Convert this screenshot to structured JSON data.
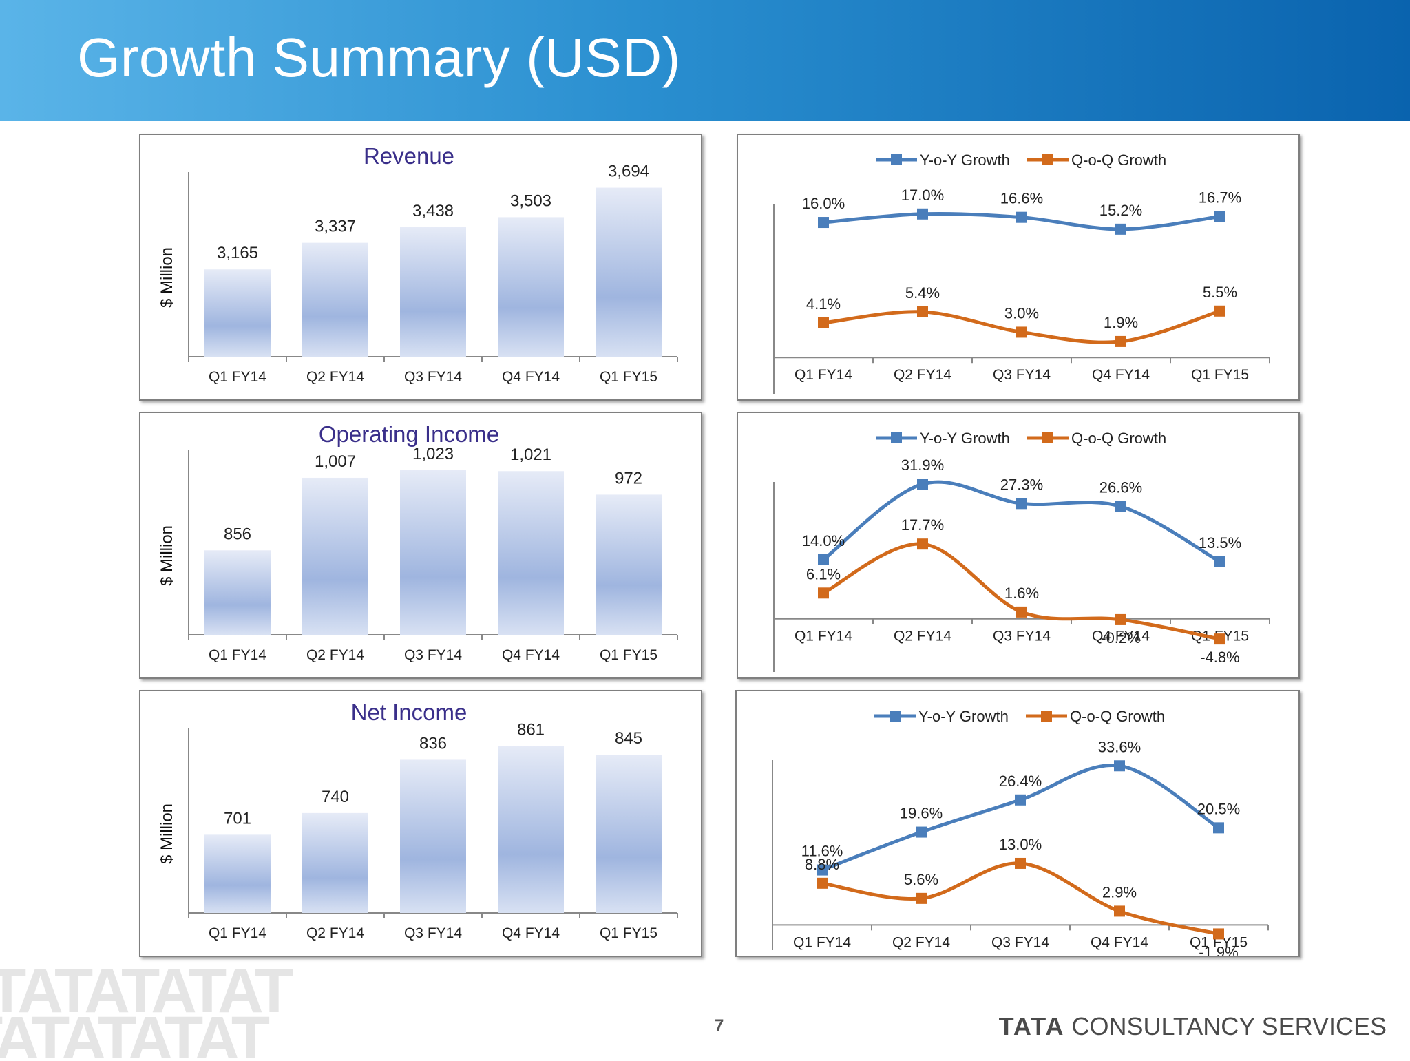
{
  "header": {
    "title": "Growth Summary (USD)"
  },
  "footer": {
    "page_number": "7",
    "brand_mark": "TATA",
    "brand_name": "CONSULTANCY SERVICES",
    "watermark_text": "TATATATAT"
  },
  "colors": {
    "bar_top": "#e6ebf7",
    "bar_bottom": "#9fb5df",
    "yoy": "#4a7ebb",
    "qoq": "#d26a1b",
    "title_text": "#3a2f8a"
  },
  "chart_data": [
    {
      "type": "bar",
      "title": "Revenue",
      "ylabel": "$ Million",
      "categories": [
        "Q1 FY14",
        "Q2 FY14",
        "Q3 FY14",
        "Q4 FY14",
        "Q1 FY15"
      ],
      "values": [
        3165,
        3337,
        3438,
        3503,
        3694
      ],
      "labels": [
        "3,165",
        "3,337",
        "3,438",
        "3,503",
        "3,694"
      ],
      "ylim": [
        2600,
        3750
      ]
    },
    {
      "type": "line",
      "categories": [
        "Q1 FY14",
        "Q2 FY14",
        "Q3 FY14",
        "Q4 FY14",
        "Q1 FY15"
      ],
      "legend_position": "top",
      "ylim": [
        -3,
        20
      ],
      "series": [
        {
          "name": "Y-o-Y Growth",
          "values": [
            16.0,
            17.0,
            16.6,
            15.2,
            16.7
          ],
          "labels": [
            "16.0%",
            "17.0%",
            "16.6%",
            "15.2%",
            "16.7%"
          ]
        },
        {
          "name": "Q-o-Q Growth",
          "values": [
            4.1,
            5.4,
            3.0,
            1.9,
            5.5
          ],
          "labels": [
            "4.1%",
            "5.4%",
            "3.0%",
            "1.9%",
            "5.5%"
          ]
        }
      ]
    },
    {
      "type": "bar",
      "title": "Operating Income",
      "ylabel": "$ Million",
      "categories": [
        "Q1 FY14",
        "Q2 FY14",
        "Q3 FY14",
        "Q4 FY14",
        "Q1 FY15"
      ],
      "values": [
        856,
        1007,
        1023,
        1021,
        972
      ],
      "labels": [
        "856",
        "1,007",
        "1,023",
        "1,021",
        "972"
      ],
      "ylim": [
        680,
        1050
      ]
    },
    {
      "type": "line",
      "categories": [
        "Q1 FY14",
        "Q2 FY14",
        "Q3 FY14",
        "Q4 FY14",
        "Q1 FY15"
      ],
      "legend_position": "top",
      "ylim": [
        -10,
        36
      ],
      "series": [
        {
          "name": "Y-o-Y Growth",
          "values": [
            14.0,
            31.9,
            27.3,
            26.6,
            13.5
          ],
          "labels": [
            "14.0%",
            "31.9%",
            "27.3%",
            "26.6%",
            "13.5%"
          ]
        },
        {
          "name": "Q-o-Q Growth",
          "values": [
            6.1,
            17.7,
            1.6,
            -0.2,
            -4.8
          ],
          "labels": [
            "6.1%",
            "17.7%",
            "1.6%",
            "-0.2%",
            "-4.8%"
          ]
        }
      ]
    },
    {
      "type": "bar",
      "title": "Net Income",
      "ylabel": "$ Million",
      "categories": [
        "Q1 FY14",
        "Q2 FY14",
        "Q3 FY14",
        "Q4 FY14",
        "Q1 FY15"
      ],
      "values": [
        701,
        740,
        836,
        861,
        845
      ],
      "labels": [
        "701",
        "740",
        "836",
        "861",
        "845"
      ],
      "ylim": [
        560,
        880
      ]
    },
    {
      "type": "line",
      "categories": [
        "Q1 FY14",
        "Q2 FY14",
        "Q3 FY14",
        "Q4 FY14",
        "Q1 FY15"
      ],
      "legend_position": "top",
      "ylim": [
        -3,
        38
      ],
      "series": [
        {
          "name": "Y-o-Y Growth",
          "values": [
            11.6,
            19.6,
            26.4,
            33.6,
            20.5
          ],
          "labels": [
            "11.6%",
            "19.6%",
            "26.4%",
            "33.6%",
            "20.5%"
          ]
        },
        {
          "name": "Q-o-Q Growth",
          "values": [
            8.8,
            5.6,
            13.0,
            2.9,
            -1.9
          ],
          "labels": [
            "8.8%",
            "5.6%",
            "13.0%",
            "2.9%",
            "-1.9%"
          ]
        }
      ]
    }
  ]
}
